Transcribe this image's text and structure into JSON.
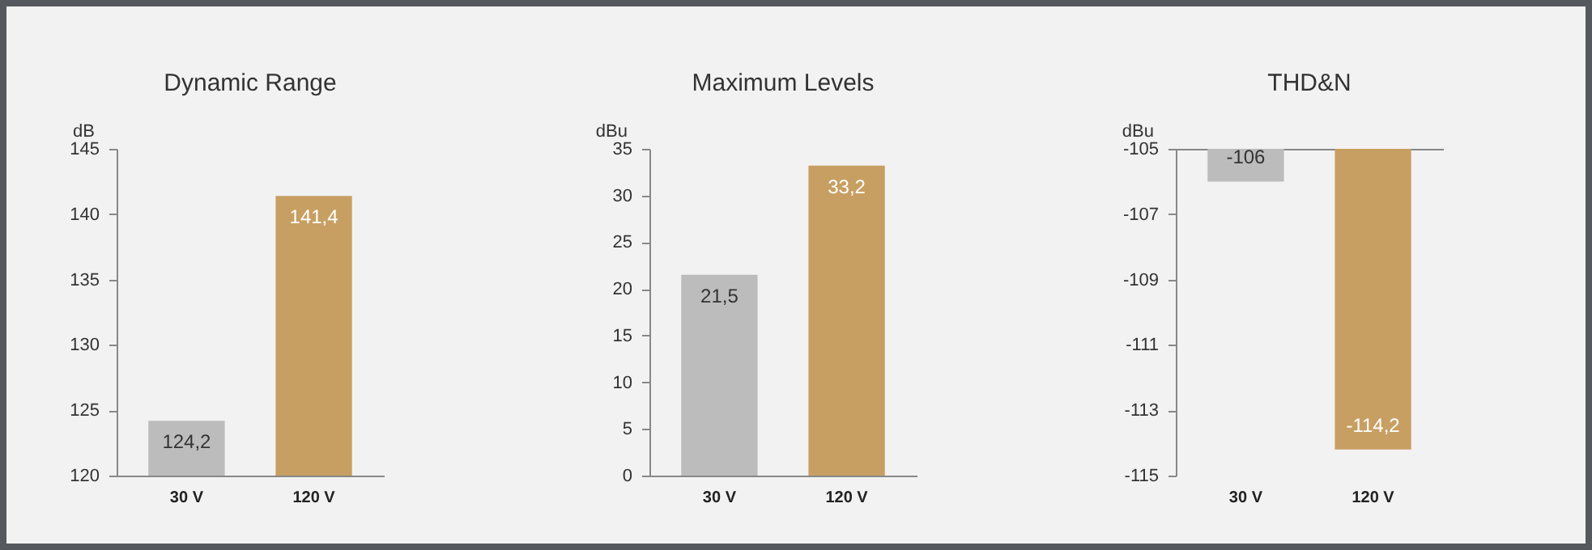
{
  "chart_data": [
    {
      "type": "bar",
      "title": "Dynamic Range",
      "ylabel": "dB",
      "categories": [
        "30 V",
        "120 V"
      ],
      "values": [
        124.2,
        141.4
      ],
      "value_labels": [
        "124,2",
        "141,4"
      ],
      "colors": [
        "#bcbcbd",
        "#c89f62"
      ],
      "ylim": [
        120,
        145
      ],
      "yticks": [
        120,
        125,
        130,
        135,
        140,
        145
      ]
    },
    {
      "type": "bar",
      "title": "Maximum Levels",
      "ylabel": "dBu",
      "categories": [
        "30 V",
        "120 V"
      ],
      "values": [
        21.5,
        33.2
      ],
      "value_labels": [
        "21,5",
        "33,2"
      ],
      "colors": [
        "#bcbcbd",
        "#c89f62"
      ],
      "ylim": [
        0,
        35
      ],
      "yticks": [
        0,
        5,
        10,
        15,
        20,
        25,
        30,
        35
      ]
    },
    {
      "type": "bar",
      "title": "THD&N",
      "ylabel": "dBu",
      "categories": [
        "30 V",
        "120 V"
      ],
      "values": [
        -106,
        -114.2
      ],
      "value_labels": [
        "-106",
        "-114,2"
      ],
      "colors": [
        "#bcbcbd",
        "#c89f62"
      ],
      "ylim": [
        -115,
        -105
      ],
      "yticks": [
        -115,
        -113,
        -111,
        -109,
        -107,
        -105
      ]
    }
  ]
}
